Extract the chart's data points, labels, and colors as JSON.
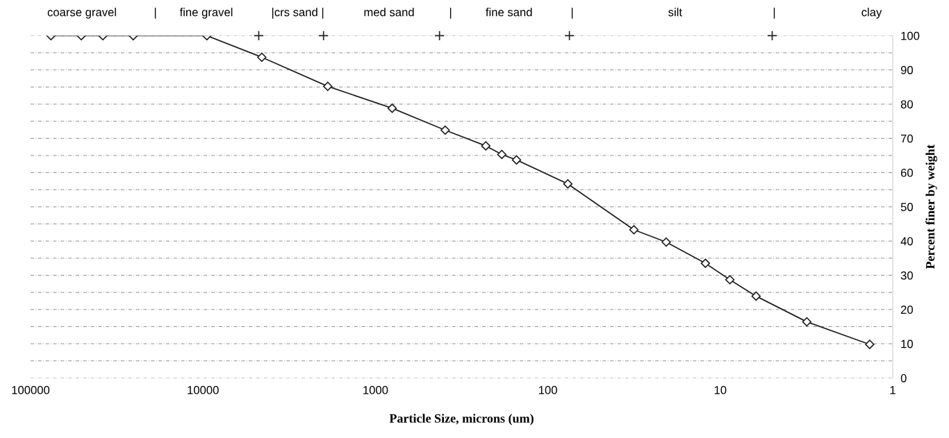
{
  "chart_data": {
    "type": "line",
    "xlabel": "Particle Size, microns (um)",
    "ylabel": "Percent finer by weight",
    "log": "x",
    "xlim": [
      100000,
      1
    ],
    "xticks": [
      100000,
      10000,
      1000,
      100,
      10,
      1
    ],
    "ylim": [
      0,
      100
    ],
    "yticks": [
      0,
      {
        "value": 5,
        "label": null
      },
      10,
      {
        "value": 15,
        "label": null
      },
      20,
      {
        "value": 25,
        "label": null
      },
      30,
      {
        "value": 35,
        "label": null
      },
      40,
      {
        "value": 45,
        "label": null
      },
      50,
      {
        "value": 55,
        "label": null
      },
      60,
      {
        "value": 65,
        "label": null
      },
      70,
      {
        "value": 75,
        "label": null
      },
      80,
      {
        "value": 85,
        "label": null
      },
      90,
      {
        "value": 95,
        "label": null
      },
      100
    ],
    "grid": "y",
    "marker": "diamond",
    "line_style": "solid",
    "series": [
      {
        "color": "#222222",
        "x": [
          76200,
          50800,
          38100,
          25400,
          9500,
          4560,
          1890,
          800,
          394,
          229,
          185,
          152,
          76.6,
          31.7,
          20.6,
          12.2,
          8.8,
          6.2,
          3.15,
          1.36
        ],
        "values": [
          100,
          100,
          100,
          100,
          100,
          93.7,
          85.2,
          78.8,
          72.4,
          67.8,
          65.3,
          63.7,
          56.7,
          43.3,
          39.7,
          33.5,
          28.7,
          23.9,
          16.4,
          9.8
        ]
      },
      {
        "type": "scatter",
        "marker": "cross",
        "color": "#222222",
        "x": [
          4750,
          2000,
          425,
          75,
          5
        ],
        "values": [
          100,
          100,
          100,
          100,
          100
        ]
      }
    ],
    "annotations": [
      "coarse gravel",
      "|",
      "fine gravel",
      "|crs sand |",
      "med sand",
      "|",
      "fine sand",
      "|",
      "silt",
      "|",
      "clay"
    ]
  }
}
